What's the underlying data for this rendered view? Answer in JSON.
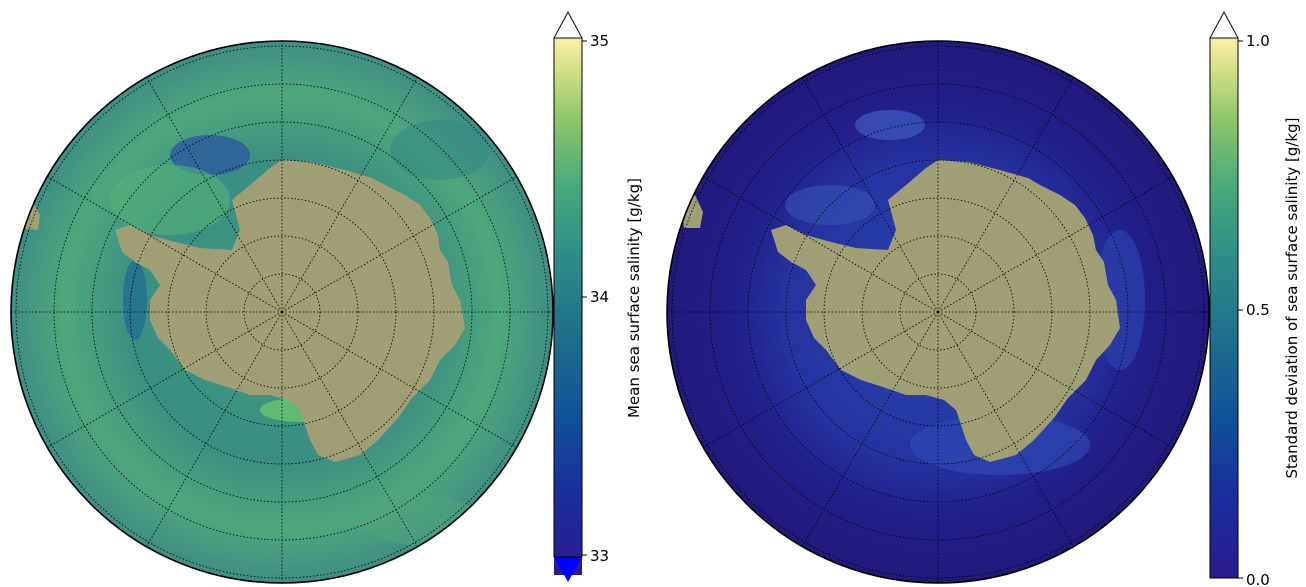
{
  "maps": [
    {
      "id": "mean-salinity",
      "colorbar": {
        "label": "Mean sea surface salinity [g/kg]",
        "ticks": [
          "35",
          "34",
          "33"
        ],
        "range": [
          33,
          35
        ],
        "colormap": "haline",
        "extend": "both",
        "over_color": "#ffffff",
        "under_color": "#0000ff"
      }
    },
    {
      "id": "std-salinity",
      "colorbar": {
        "label": "Standard deviation of sea surface salinity [g/kg]",
        "ticks": [
          "1.0",
          "0.5",
          "0.0"
        ],
        "range": [
          0.0,
          1.0
        ],
        "colormap": "haline",
        "extend": "max",
        "over_color": "#ffffff"
      }
    }
  ],
  "projection": "South Polar Stereographic",
  "land_color": "#a09e74",
  "gridlines": "dotted"
}
